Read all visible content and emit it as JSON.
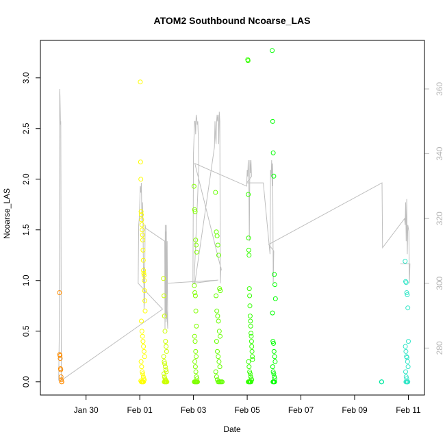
{
  "chart_data": {
    "type": "scatter",
    "title": "ATOM2 Southbound Ncoarse_LAS",
    "xlabel": "Date",
    "ylabel": "Ncoarse_LAS",
    "x_unit": "days",
    "x_ticks": [
      {
        "day": 2,
        "label": "Jan 30"
      },
      {
        "day": 4,
        "label": "Feb 01"
      },
      {
        "day": 6,
        "label": "Feb 03"
      },
      {
        "day": 8,
        "label": "Feb 05"
      },
      {
        "day": 10,
        "label": "Feb 07"
      },
      {
        "day": 12,
        "label": "Feb 09"
      },
      {
        "day": 14,
        "label": "Feb 11"
      }
    ],
    "y_ticks": [
      "0.0",
      "0.5",
      "1.0",
      "1.5",
      "2.0",
      "2.5",
      "3.0"
    ],
    "y2_ticks": [
      "280",
      "300",
      "320",
      "340",
      "360"
    ],
    "xlim": [
      0.3,
      14.6
    ],
    "ylim": [
      -0.13,
      3.37
    ],
    "y2lim": [
      265.5,
      375
    ],
    "grid": false,
    "point_groups": [
      {
        "color": "#ff8c00",
        "x": [
          1.01,
          1.02,
          1.03,
          1.04,
          1.05,
          1.06,
          1.07,
          1.08,
          1.09,
          1.1
        ],
        "y": [
          0.88,
          0.27,
          0.26,
          0.23,
          0.13,
          0.12,
          0.05,
          0.02,
          0.0,
          0.0
        ]
      },
      {
        "color": "#ffff00",
        "x": [
          4.02,
          4.03,
          4.04,
          4.05,
          4.06,
          4.07,
          4.08,
          4.09,
          4.1,
          4.11,
          4.12,
          4.13,
          4.14,
          4.15,
          4.16,
          4.17,
          4.18,
          4.19,
          4.2,
          4.06,
          4.08,
          4.1,
          4.12,
          4.14,
          4.16,
          4.18,
          4.05,
          4.07,
          4.09,
          4.11,
          4.13,
          4.15,
          4.17,
          4.04,
          4.06,
          4.08,
          4.1,
          4.12,
          4.14
        ],
        "y": [
          2.96,
          2.17,
          2.0,
          1.68,
          1.65,
          1.6,
          1.55,
          1.5,
          1.45,
          1.4,
          1.3,
          1.2,
          1.1,
          1.07,
          1.05,
          1.0,
          0.9,
          0.8,
          0.7,
          0.6,
          0.5,
          0.45,
          0.4,
          0.35,
          0.3,
          0.25,
          0.2,
          0.15,
          0.1,
          0.08,
          0.05,
          0.03,
          0.02,
          0.01,
          0.0,
          0.0,
          0.0,
          0.0,
          0.0
        ]
      },
      {
        "color": "#ccff00",
        "x": [
          4.88,
          4.9,
          4.92,
          4.94,
          4.96,
          4.98,
          5.0,
          4.89,
          4.91,
          4.93,
          4.95,
          4.97,
          4.99,
          4.9,
          4.92,
          4.94,
          4.96,
          4.98,
          4.91,
          4.93,
          4.95,
          4.97,
          4.99,
          5.01
        ],
        "y": [
          1.02,
          0.85,
          0.65,
          0.5,
          0.4,
          0.35,
          0.3,
          0.25,
          0.2,
          0.18,
          0.15,
          0.12,
          0.1,
          0.08,
          0.05,
          0.03,
          0.02,
          0.01,
          0.0,
          0.0,
          0.0,
          0.0,
          0.0,
          0.0
        ]
      },
      {
        "color": "#80ff00",
        "x": [
          6.02,
          6.04,
          6.06,
          6.08,
          6.1,
          6.12,
          6.03,
          6.05,
          6.07,
          6.09,
          6.11,
          6.04,
          6.06,
          6.08,
          6.1,
          6.05,
          6.07,
          6.09,
          6.11,
          6.13,
          6.03,
          6.05,
          6.07,
          6.09,
          6.11,
          6.13,
          6.15
        ],
        "y": [
          1.93,
          1.7,
          1.68,
          1.4,
          1.35,
          1.28,
          0.95,
          0.88,
          0.85,
          0.7,
          0.55,
          0.45,
          0.4,
          0.3,
          0.25,
          0.2,
          0.15,
          0.1,
          0.05,
          0.03,
          0.0,
          0.0,
          0.0,
          0.0,
          0.0,
          0.0,
          0.0
        ]
      },
      {
        "color": "#66ff00",
        "x": [
          6.82,
          6.85,
          6.88,
          6.91,
          6.94,
          6.97,
          7.0,
          6.84,
          6.87,
          6.9,
          6.93,
          6.96,
          6.99,
          6.86,
          6.89,
          6.92,
          6.95,
          6.98,
          6.83,
          6.86,
          6.89,
          6.92,
          6.95,
          6.98,
          7.01,
          7.04,
          7.07
        ],
        "y": [
          1.87,
          1.48,
          1.44,
          1.35,
          1.25,
          0.92,
          0.9,
          0.85,
          0.7,
          0.65,
          0.6,
          0.5,
          0.45,
          0.4,
          0.3,
          0.25,
          0.2,
          0.15,
          0.1,
          0.05,
          0.02,
          0.0,
          0.0,
          0.0,
          0.0,
          0.0,
          0.0
        ]
      },
      {
        "color": "#33ff00",
        "x": [
          8.02,
          8.03,
          8.04,
          8.05,
          8.06,
          8.07,
          8.08,
          8.09,
          8.1,
          8.11,
          8.12,
          8.13,
          8.14,
          8.15,
          8.16,
          8.17,
          8.18,
          8.19,
          8.2,
          8.05,
          8.07,
          8.09,
          8.11,
          8.13,
          8.15,
          8.17,
          8.04,
          8.06,
          8.08,
          8.1,
          8.12,
          8.14
        ],
        "y": [
          3.18,
          3.17,
          1.85,
          1.42,
          1.3,
          1.25,
          0.92,
          0.85,
          0.75,
          0.65,
          0.6,
          0.55,
          0.48,
          0.45,
          0.4,
          0.35,
          0.3,
          0.25,
          0.22,
          0.2,
          0.15,
          0.1,
          0.08,
          0.05,
          0.03,
          0.02,
          0.0,
          0.0,
          0.0,
          0.0,
          0.0,
          0.0
        ]
      },
      {
        "color": "#00ff00",
        "x": [
          8.93,
          8.95,
          8.97,
          8.99,
          9.01,
          9.03,
          9.05,
          8.94,
          8.96,
          8.98,
          9.0,
          9.02,
          9.04,
          8.95,
          8.97,
          8.99,
          9.01,
          9.03,
          8.96,
          8.98,
          9.0,
          9.02
        ],
        "y": [
          3.27,
          2.57,
          2.26,
          2.03,
          1.06,
          0.96,
          0.82,
          0.68,
          0.4,
          0.38,
          0.3,
          0.25,
          0.2,
          0.15,
          0.1,
          0.08,
          0.05,
          0.03,
          0.0,
          0.0,
          0.0,
          0.0
        ]
      },
      {
        "color": "#00e8a0",
        "x": [
          13.0,
          13.01
        ],
        "y": [
          0.0,
          0.0
        ]
      },
      {
        "color": "#33e6c8",
        "x": [
          13.88,
          13.9,
          13.92,
          13.94,
          13.96,
          13.98,
          14.0,
          13.89,
          13.91,
          13.93,
          13.95,
          13.97,
          13.99,
          13.9,
          13.92,
          13.94,
          13.96,
          13.98,
          13.91,
          13.93,
          13.95,
          13.97
        ],
        "y": [
          1.19,
          0.99,
          0.98,
          0.88,
          0.86,
          0.73,
          0.4,
          0.35,
          0.3,
          0.25,
          0.24,
          0.2,
          0.15,
          0.1,
          0.05,
          0.03,
          0.0,
          0.0,
          0.0,
          0.0,
          0.0,
          0.0
        ]
      }
    ],
    "series": [
      {
        "axis": "right",
        "color": "#bebebe",
        "x": [
          0.98,
          1.0,
          1.02,
          1.03,
          1.05,
          1.06,
          1.08,
          4.85,
          3.94,
          3.96,
          3.98,
          4.0,
          4.02,
          4.04,
          4.06,
          4.08,
          4.1,
          4.12,
          4.14,
          4.15,
          4.16,
          4.18,
          4.2,
          4.22,
          4.93,
          4.94,
          4.95,
          4.96,
          4.97,
          4.98,
          4.99,
          5.0,
          5.02,
          5.04,
          4.95,
          5.0,
          6.92,
          5.98,
          6.0,
          6.02,
          6.04,
          6.06,
          6.08,
          6.1,
          6.12,
          6.14,
          6.16,
          6.18,
          6.2,
          6.02,
          6.05,
          6.78,
          6.8,
          6.82,
          6.84,
          6.86,
          6.88,
          6.9,
          6.92,
          6.94,
          6.96,
          6.98,
          7.0,
          7.02,
          7.04,
          6.05,
          7.98,
          8.0,
          8.02,
          8.04,
          8.06,
          8.08,
          8.1,
          8.12,
          8.14,
          8.16,
          7.98,
          8.6,
          8.85,
          8.87,
          8.89,
          8.91,
          8.93,
          8.95,
          8.97,
          8.99,
          8.8,
          13.02,
          13.04,
          13.04,
          13.86,
          13.88,
          13.9,
          13.92,
          13.94,
          13.96,
          13.98,
          14.0,
          14.02,
          14.04,
          14.06,
          13.7,
          13.92
        ],
        "y": [
          270.0,
          283.0,
          360.0,
          358.0,
          349.0,
          350.0,
          270.0,
          292.0,
          300.0,
          318.0,
          320.0,
          325.0,
          330.0,
          328.0,
          331.0,
          319.0,
          325.0,
          319.0,
          300.0,
          305.0,
          292.0,
          295.0,
          318.0,
          317.0,
          313.0,
          286.0,
          318.0,
          290.0,
          316.0,
          288.0,
          318.0,
          289.0,
          313.0,
          286.0,
          300.0,
          300.0,
          301.0,
          300.0,
          340.0,
          345.0,
          350.0,
          350.0,
          346.0,
          352.0,
          351.0,
          349.0,
          350.0,
          345.0,
          336.0,
          300.0,
          300.0,
          342.0,
          350.0,
          345.0,
          343.0,
          350.0,
          352.0,
          350.0,
          352.0,
          343.0,
          353.0,
          350.0,
          300.0,
          305.0,
          304.0,
          337.0,
          330.0,
          335.0,
          333.0,
          338.0,
          334.0,
          313.0,
          338.0,
          334.0,
          338.0,
          333.0,
          331.0,
          331.0,
          309.0,
          335.0,
          333.0,
          338.0,
          330.0,
          337.0,
          300.0,
          310.0,
          312.0,
          331.0,
          311.0,
          311.0,
          320.0,
          318.0,
          325.0,
          313.0,
          326.0,
          309.0,
          318.0,
          317.0,
          316.0,
          300.0,
          306.0,
          306.0,
          306.0
        ]
      }
    ]
  }
}
